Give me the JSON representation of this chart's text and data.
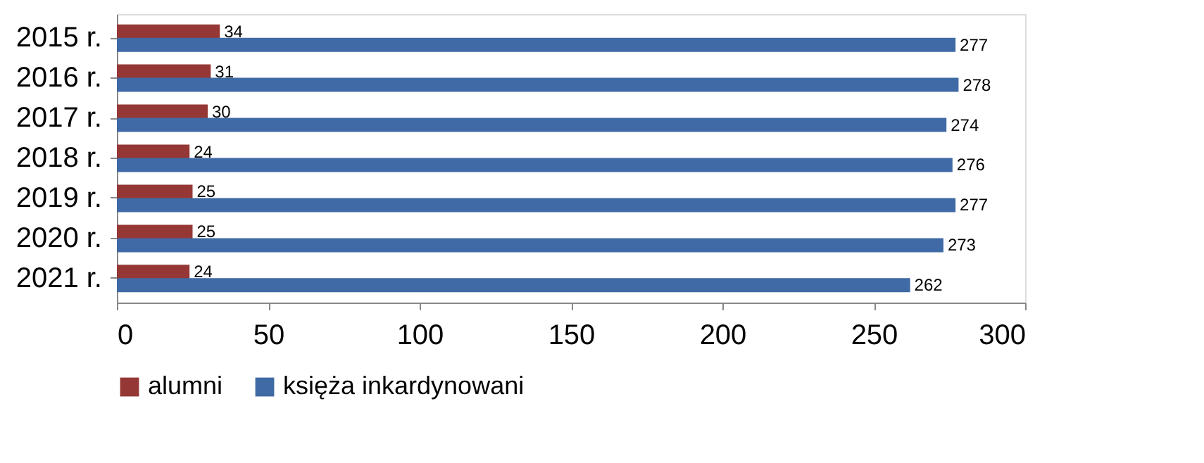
{
  "chart_data": {
    "type": "bar",
    "orientation": "horizontal",
    "categories": [
      "2015 r.",
      "2016 r.",
      "2017 r.",
      "2018 r.",
      "2019 r.",
      "2020 r.",
      "2021 r."
    ],
    "series": [
      {
        "name": "alumni",
        "color": "#953735",
        "values": [
          34,
          31,
          30,
          24,
          25,
          25,
          24
        ]
      },
      {
        "name": "księża inkardynowani",
        "color": "#3f6aa5",
        "values": [
          277,
          278,
          274,
          276,
          277,
          273,
          262
        ]
      }
    ],
    "xlim": [
      0,
      300
    ],
    "xticks": [
      0,
      50,
      100,
      150,
      200,
      250,
      300
    ],
    "grid": false,
    "legend": "bottom",
    "data_labels": true
  }
}
